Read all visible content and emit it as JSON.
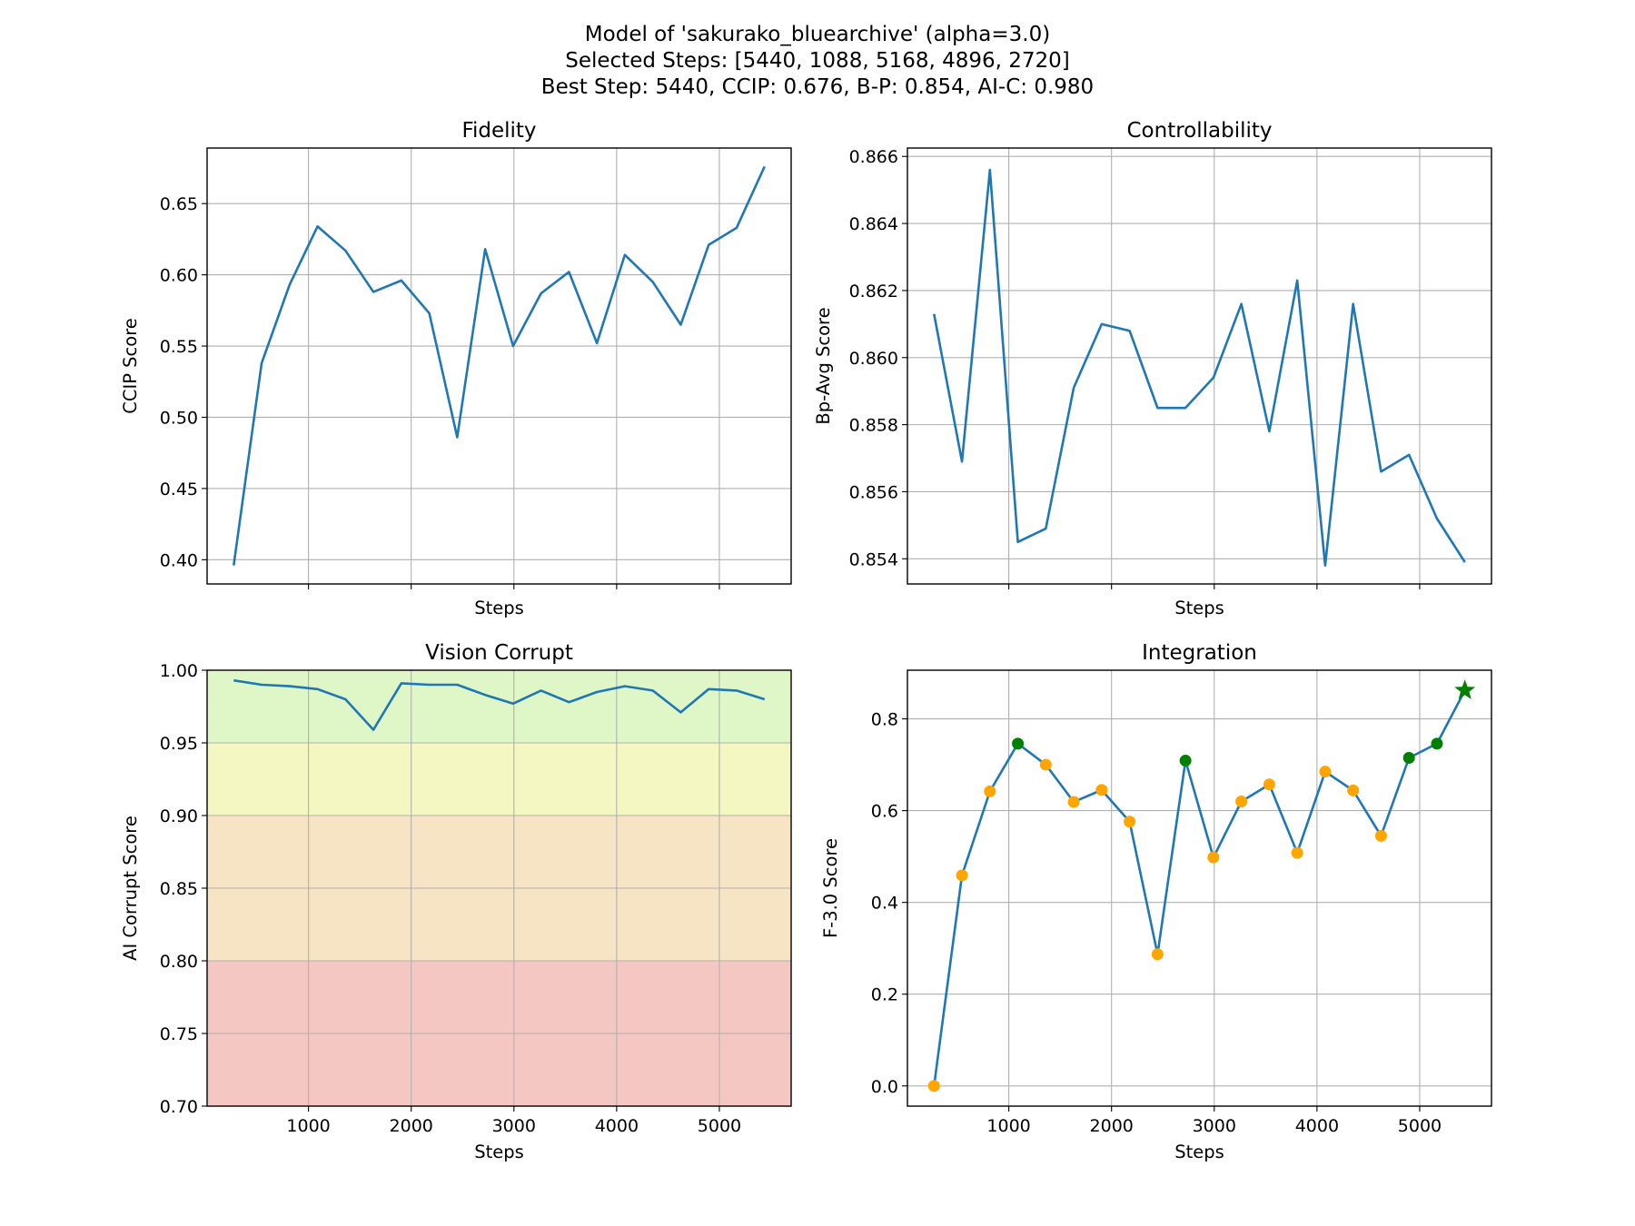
{
  "figure": {
    "title_lines": [
      "Model of 'sakurako_bluearchive' (alpha=3.0)",
      "Selected Steps: [5440, 1088, 5168, 4896, 2720]",
      "Best Step: 5440, CCIP: 0.676, B-P: 0.854, AI-C: 0.980"
    ]
  },
  "colors": {
    "line": "#1f77b4",
    "point_normal": "#ffa500",
    "point_selected": "#008000",
    "best_star": "#008000",
    "zone_green": "#dff7c6",
    "zone_yellow": "#f4f7c2",
    "zone_orange": "#f6e4c4",
    "zone_red": "#f5c7c2"
  },
  "chart_data": [
    {
      "id": "fidelity",
      "type": "line",
      "title": "Fidelity",
      "xlabel": "Steps",
      "ylabel": "CCIP Score",
      "x": [
        272,
        544,
        816,
        1088,
        1360,
        1632,
        1904,
        2176,
        2448,
        2720,
        2992,
        3264,
        3536,
        3808,
        4080,
        4352,
        4624,
        4896,
        5168,
        5440
      ],
      "y": [
        0.396,
        0.538,
        0.593,
        0.634,
        0.617,
        0.588,
        0.596,
        0.573,
        0.486,
        0.618,
        0.55,
        0.587,
        0.602,
        0.552,
        0.614,
        0.595,
        0.565,
        0.621,
        0.633,
        0.676
      ],
      "xlim": [
        13,
        5699
      ],
      "ylim": [
        0.383,
        0.689
      ],
      "xticks": [
        1000,
        2000,
        3000,
        4000,
        5000
      ],
      "show_xtick_labels": false,
      "yticks": [
        0.4,
        0.45,
        0.5,
        0.55,
        0.6,
        0.65
      ],
      "ytick_labels": [
        "0.40",
        "0.45",
        "0.50",
        "0.55",
        "0.60",
        "0.65"
      ],
      "grid": true
    },
    {
      "id": "controllability",
      "type": "line",
      "title": "Controllability",
      "xlabel": "Steps",
      "ylabel": "Bp-Avg Score",
      "x": [
        272,
        544,
        816,
        1088,
        1360,
        1632,
        1904,
        2176,
        2448,
        2720,
        2992,
        3264,
        3536,
        3808,
        4080,
        4352,
        4624,
        4896,
        5168,
        5440
      ],
      "y": [
        0.8613,
        0.8569,
        0.8656,
        0.8545,
        0.8549,
        0.8591,
        0.861,
        0.8608,
        0.8585,
        0.8585,
        0.8594,
        0.8616,
        0.8578,
        0.8623,
        0.8538,
        0.8616,
        0.8566,
        0.8571,
        0.8552,
        0.8539
      ],
      "xlim": [
        13,
        5699
      ],
      "ylim": [
        0.85325,
        0.86625
      ],
      "xticks": [
        1000,
        2000,
        3000,
        4000,
        5000
      ],
      "show_xtick_labels": false,
      "yticks": [
        0.854,
        0.856,
        0.858,
        0.86,
        0.862,
        0.864,
        0.866
      ],
      "ytick_labels": [
        "0.854",
        "0.856",
        "0.858",
        "0.860",
        "0.862",
        "0.864",
        "0.866"
      ],
      "grid": true
    },
    {
      "id": "vision_corrupt",
      "type": "line",
      "title": "Vision Corrupt",
      "xlabel": "Steps",
      "ylabel": "AI Corrupt Score",
      "x": [
        272,
        544,
        816,
        1088,
        1360,
        1632,
        1904,
        2176,
        2448,
        2720,
        2992,
        3264,
        3536,
        3808,
        4080,
        4352,
        4624,
        4896,
        5168,
        5440
      ],
      "y": [
        0.993,
        0.99,
        0.989,
        0.987,
        0.98,
        0.959,
        0.991,
        0.99,
        0.99,
        0.983,
        0.977,
        0.986,
        0.978,
        0.985,
        0.989,
        0.986,
        0.971,
        0.987,
        0.986,
        0.98
      ],
      "xlim": [
        13,
        5699
      ],
      "ylim": [
        0.7,
        1.0
      ],
      "xticks": [
        1000,
        2000,
        3000,
        4000,
        5000
      ],
      "xtick_labels": [
        "1000",
        "2000",
        "3000",
        "4000",
        "5000"
      ],
      "show_xtick_labels": true,
      "yticks": [
        0.7,
        0.75,
        0.8,
        0.85,
        0.9,
        0.95,
        1.0
      ],
      "ytick_labels": [
        "0.70",
        "0.75",
        "0.80",
        "0.85",
        "0.90",
        "0.95",
        "1.00"
      ],
      "bands": [
        {
          "from": 0.95,
          "to": 1.0,
          "color": "zone_green"
        },
        {
          "from": 0.9,
          "to": 0.95,
          "color": "zone_yellow"
        },
        {
          "from": 0.8,
          "to": 0.9,
          "color": "zone_orange"
        },
        {
          "from": 0.7,
          "to": 0.8,
          "color": "zone_red"
        }
      ],
      "grid": true
    },
    {
      "id": "integration",
      "type": "line",
      "title": "Integration",
      "xlabel": "Steps",
      "ylabel": "F-3.0 Score",
      "x": [
        272,
        544,
        816,
        1088,
        1360,
        1632,
        1904,
        2176,
        2448,
        2720,
        2992,
        3264,
        3536,
        3808,
        4080,
        4352,
        4624,
        4896,
        5168,
        5440
      ],
      "y": [
        0.0,
        0.459,
        0.642,
        0.746,
        0.7,
        0.619,
        0.645,
        0.576,
        0.287,
        0.709,
        0.498,
        0.62,
        0.657,
        0.508,
        0.685,
        0.644,
        0.545,
        0.715,
        0.746,
        0.862
      ],
      "xlim": [
        13,
        5699
      ],
      "ylim": [
        -0.044,
        0.906
      ],
      "xticks": [
        1000,
        2000,
        3000,
        4000,
        5000
      ],
      "xtick_labels": [
        "1000",
        "2000",
        "3000",
        "4000",
        "5000"
      ],
      "show_xtick_labels": true,
      "yticks": [
        0.0,
        0.2,
        0.4,
        0.6,
        0.8
      ],
      "ytick_labels": [
        "0.0",
        "0.2",
        "0.4",
        "0.6",
        "0.8"
      ],
      "selected_steps": [
        1088,
        2720,
        4896,
        5168
      ],
      "best_step": 5440,
      "grid": true
    }
  ]
}
